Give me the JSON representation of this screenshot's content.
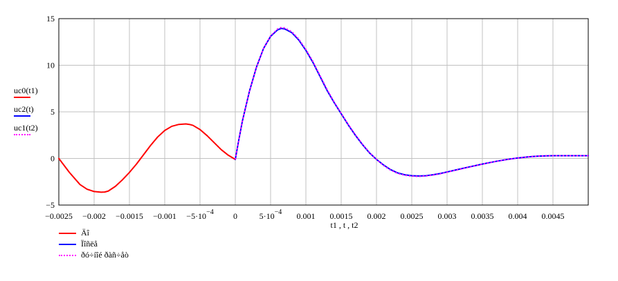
{
  "chart_data": {
    "type": "line",
    "title": "",
    "xlabel": "t1 , t , t2",
    "ylabel": "",
    "xlim": [
      -0.0025,
      0.005
    ],
    "ylim": [
      -5,
      15
    ],
    "grid": true,
    "x_tick_labels": [
      "−0.0025",
      "−0.002",
      "−0.0015",
      "−0.001",
      "−5·10",
      "0",
      "5·10",
      "0.001",
      "0.0015",
      "0.002",
      "0.0025",
      "0.003",
      "0.0035",
      "0.004",
      "0.0045"
    ],
    "x_tick_exponent": "−4",
    "y_tick_labels": [
      "15",
      "10",
      "5",
      "0",
      "−5"
    ],
    "side_legend": [
      "uc0(t1)",
      "uc2(t)",
      "uc1(t2)"
    ],
    "bottom_legend": [
      "Äî",
      "Ïîñëå",
      "ðó÷íîé ðàñ÷åò"
    ],
    "series": [
      {
        "color": "#ff0000",
        "style": "solid",
        "x": [
          -0.0025,
          -0.00235,
          -0.0022,
          -0.0021,
          -0.002,
          -0.0019,
          -0.00185,
          -0.0018,
          -0.0017,
          -0.0016,
          -0.0015,
          -0.0014,
          -0.0013,
          -0.0012,
          -0.0011,
          -0.001,
          -0.0009,
          -0.0008,
          -0.0007,
          -0.00065,
          -0.0006,
          -0.0005,
          -0.0004,
          -0.0003,
          -0.0002,
          -0.0001,
          0
        ],
        "y": [
          0,
          -1.5,
          -2.8,
          -3.3,
          -3.55,
          -3.62,
          -3.6,
          -3.5,
          -3.0,
          -2.3,
          -1.5,
          -0.6,
          0.4,
          1.4,
          2.3,
          3.0,
          3.45,
          3.65,
          3.7,
          3.65,
          3.55,
          3.1,
          2.45,
          1.7,
          0.95,
          0.35,
          -0.1
        ]
      },
      {
        "color": "#0000ff",
        "style": "solid",
        "x": [
          0,
          5e-05,
          0.0001,
          0.0002,
          0.0003,
          0.0004,
          0.0005,
          0.0006,
          0.00065,
          0.0007,
          0.0008,
          0.0009,
          0.001,
          0.0011,
          0.0012,
          0.0013,
          0.0014,
          0.0015,
          0.0016,
          0.0017,
          0.0018,
          0.0019,
          0.002,
          0.0021,
          0.0022,
          0.0023,
          0.0024,
          0.0025,
          0.0026,
          0.0027,
          0.0028,
          0.0029,
          0.003,
          0.0031,
          0.0032,
          0.0033,
          0.0034,
          0.0035,
          0.0036,
          0.0037,
          0.0038,
          0.0039,
          0.004,
          0.0041,
          0.0042,
          0.0043,
          0.0044,
          0.0045,
          0.0046,
          0.0047,
          0.0048,
          0.0049,
          0.005
        ],
        "y": [
          -0.1,
          2.0,
          4.0,
          7.2,
          9.8,
          11.8,
          13.1,
          13.8,
          13.95,
          13.9,
          13.5,
          12.7,
          11.6,
          10.3,
          8.8,
          7.3,
          6.0,
          4.8,
          3.6,
          2.5,
          1.5,
          0.6,
          -0.1,
          -0.7,
          -1.2,
          -1.55,
          -1.75,
          -1.85,
          -1.88,
          -1.85,
          -1.75,
          -1.62,
          -1.45,
          -1.28,
          -1.1,
          -0.93,
          -0.77,
          -0.6,
          -0.45,
          -0.3,
          -0.17,
          -0.05,
          0.05,
          0.13,
          0.2,
          0.25,
          0.28,
          0.3,
          0.3,
          0.3,
          0.3,
          0.3,
          0.3
        ]
      },
      {
        "color": "#ff00ff",
        "style": "dotted",
        "x": [
          0,
          5e-05,
          0.0001,
          0.0002,
          0.0003,
          0.0004,
          0.0005,
          0.0006,
          0.00065,
          0.0007,
          0.0008,
          0.0009,
          0.001,
          0.0011,
          0.0012,
          0.0013,
          0.0014,
          0.0015,
          0.0016,
          0.0017,
          0.0018,
          0.0019,
          0.002,
          0.0021,
          0.0022,
          0.0023,
          0.0024,
          0.0025,
          0.0026,
          0.0027,
          0.0028,
          0.0029,
          0.003,
          0.0031,
          0.0032,
          0.0033,
          0.0034,
          0.0035,
          0.0036,
          0.0037,
          0.0038,
          0.0039,
          0.004,
          0.0041,
          0.0042,
          0.0043,
          0.0044,
          0.0045,
          0.0046,
          0.0047,
          0.0048,
          0.0049,
          0.005
        ],
        "y": [
          -0.1,
          2.0,
          4.0,
          7.2,
          9.8,
          11.8,
          13.15,
          13.9,
          14.05,
          14.0,
          13.6,
          12.8,
          11.7,
          10.4,
          8.9,
          7.4,
          6.05,
          4.85,
          3.65,
          2.55,
          1.55,
          0.65,
          -0.1,
          -0.75,
          -1.25,
          -1.6,
          -1.8,
          -1.9,
          -1.93,
          -1.88,
          -1.78,
          -1.65,
          -1.47,
          -1.3,
          -1.12,
          -0.95,
          -0.78,
          -0.61,
          -0.46,
          -0.31,
          -0.18,
          -0.06,
          0.04,
          0.13,
          0.2,
          0.25,
          0.28,
          0.3,
          0.3,
          0.3,
          0.3,
          0.3,
          0.3
        ]
      }
    ]
  }
}
